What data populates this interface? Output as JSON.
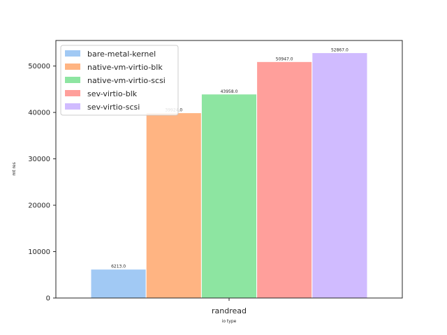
{
  "chart_data": {
    "type": "bar",
    "categories": [
      "randread"
    ],
    "series": [
      {
        "name": "bare-metal-kernel",
        "values": [
          6213.0
        ],
        "color": "#a1c9f4"
      },
      {
        "name": "native-vm-virtio-blk",
        "values": [
          39924.0
        ],
        "color": "#ffb482"
      },
      {
        "name": "native-vm-virtio-scsi",
        "values": [
          43958.0
        ],
        "color": "#8de5a1"
      },
      {
        "name": "sev-virtio-blk",
        "values": [
          50947.0
        ],
        "color": "#ff9f9b"
      },
      {
        "name": "sev-virtio-scsi",
        "values": [
          52867.0
        ],
        "color": "#d0bbff"
      }
    ],
    "data_labels": [
      "6213.0",
      "39924.0",
      "43958.0",
      "50947.0",
      "52867.0"
    ],
    "xlabel": "io type",
    "ylabel": "mt res",
    "ylim": [
      0,
      55510
    ],
    "yticks": [
      0,
      10000,
      20000,
      30000,
      40000,
      50000
    ],
    "yticklabels": [
      "0",
      "10000",
      "20000",
      "30000",
      "40000",
      "50000"
    ],
    "grid": false,
    "legend_position": "upper left"
  }
}
